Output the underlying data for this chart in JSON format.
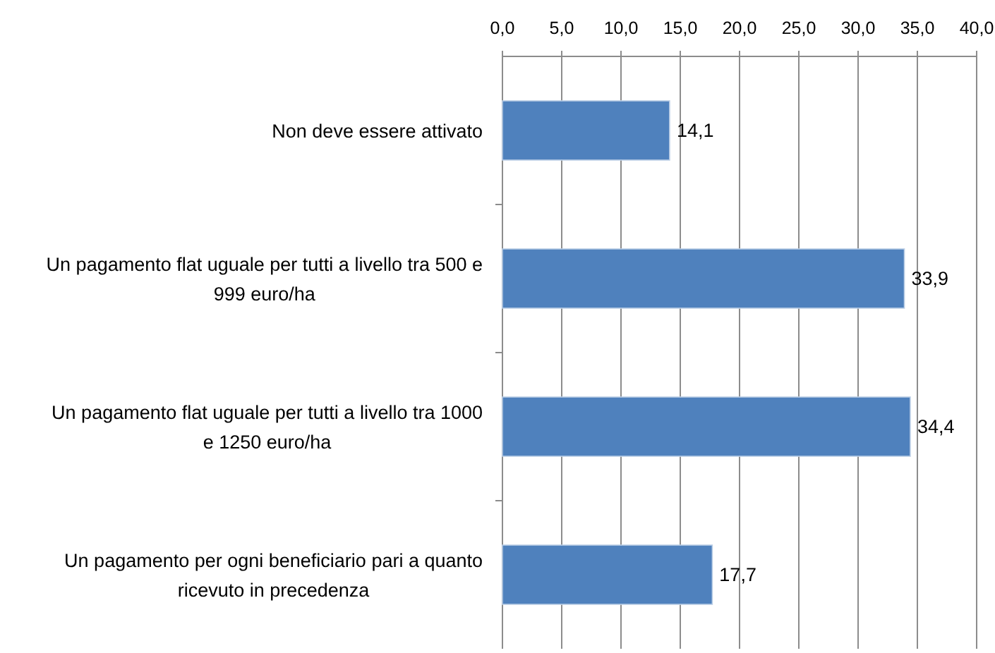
{
  "chart_data": {
    "type": "bar",
    "orientation": "horizontal",
    "categories": [
      "Non deve essere attivato",
      "Un pagamento flat uguale per tutti a livello tra 500 e 999 euro/ha",
      "Un pagamento flat uguale per tutti a livello tra 1000 e 1250 euro/ha",
      "Un pagamento per ogni beneficiario pari a quanto ricevuto in precedenza"
    ],
    "values": [
      14.1,
      33.9,
      34.4,
      17.7
    ],
    "value_labels": [
      "14,1",
      "33,9",
      "34,4",
      "17,7"
    ],
    "color": "#4f81bd",
    "xlim": [
      0,
      40
    ],
    "xticks": [
      {
        "value": 0,
        "label": "0,0"
      },
      {
        "value": 5,
        "label": "5,0"
      },
      {
        "value": 10,
        "label": "10,0"
      },
      {
        "value": 15,
        "label": "15,0"
      },
      {
        "value": 20,
        "label": "20,0"
      },
      {
        "value": 25,
        "label": "25,0"
      },
      {
        "value": 30,
        "label": "30,0"
      },
      {
        "value": 35,
        "label": "35,0"
      },
      {
        "value": 40,
        "label": "40,0"
      }
    ],
    "grid": "x"
  }
}
